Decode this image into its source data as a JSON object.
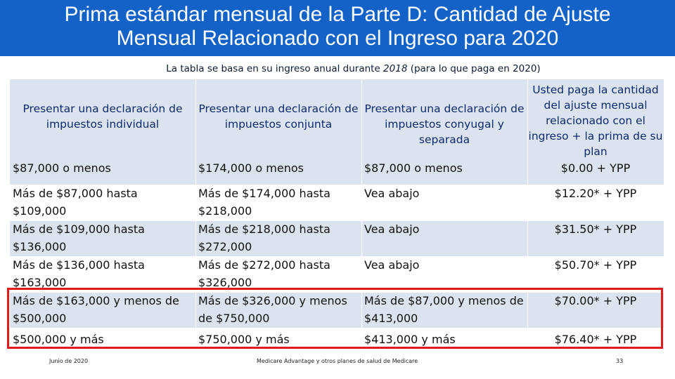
{
  "title": {
    "line1": "Prima estándar mensual de la Parte D: Cantidad de Ajuste",
    "line2": "Mensual Relacionado con el Ingreso para 2020"
  },
  "subtitle": {
    "before": "La tabla se basa en su ingreso anual durante ",
    "year": "2018",
    "after": " (para lo que paga en 2020)"
  },
  "table": {
    "headers": [
      "Presentar una declaración de impuestos individual",
      "Presentar una declaración de impuestos conjunta",
      "Presentar una declaración de impuestos conyugal y separada",
      "Usted paga la cantidad del ajuste mensual relacionado con el ingreso + la prima de su plan"
    ],
    "rows": [
      [
        "$87,000 o menos",
        "$174,000 o menos",
        "$87,000 o menos",
        "$0.00 + YPP"
      ],
      [
        "Más de $87,000 hasta $109,000",
        "Más de $174,000 hasta $218,000",
        "Vea abajo",
        "$12.20* + YPP"
      ],
      [
        "Más de $109,000 hasta $136,000",
        "Más de $218,000 hasta $272,000",
        "Vea abajo",
        "$31.50* + YPP"
      ],
      [
        "Más de $136,000 hasta $163,000",
        "Más de $272,000 hasta $326,000",
        "Vea abajo",
        "$50.70* + YPP"
      ],
      [
        "Más de $163,000 y menos de $500,000",
        "Más de $326,000 y menos de $750,000",
        "Más de $87,000 y menos de $413,000",
        "$70.00* + YPP"
      ],
      [
        "$500,000 y más",
        "$750,000 y más",
        "$413,000 y más",
        "$76.40* + YPP"
      ]
    ]
  },
  "footer": {
    "date": "Junio de 2020",
    "center": "Medicare Advantage y otros planes de salud de Medicare",
    "page": "33"
  },
  "colors": {
    "title_background": "#1262c8",
    "table_shading": "#dbe3ef",
    "highlight_border": "#e01b1b"
  }
}
